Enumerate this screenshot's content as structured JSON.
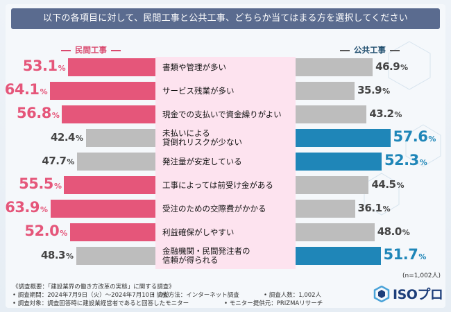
{
  "title": "以下の各項目に対して、民間工事と公共工事、どちらか当てはまる方を選択してください",
  "left_header": "民間工事",
  "right_header": "公共工事",
  "n_note": "(n=1,002人)",
  "footer": {
    "line1": "《調査概要：「建設業界の働き方改革の実態」に関する調査》",
    "line2a": "• 調査期間：2024年7月9日（火）～2024年7月10日（水）",
    "line2b": "• 調査方法：インターネット調査",
    "line2c": "• 調査人数：1,002人",
    "line3a": "• 調査対象：調査回答時に建設業経営者であると回答したモニター",
    "line3b": "• モニター提供元：PRIZMAリサーチ"
  },
  "logo": {
    "text": "ISOプロ"
  },
  "colors": {
    "private_win": "#e5567a",
    "public_win": "#1f86b8",
    "lose": "#bdbdbd",
    "center": "#fde3ef",
    "title_bg": "#5a6b8f"
  },
  "chart_data": {
    "type": "bar",
    "orientation": "diverging-horizontal",
    "unit": "%",
    "categories": [
      "書類や管理が多い",
      "サービス残業が多い",
      "現金での支払いで資金繰りがよい",
      "未払いによる\n貸倒れリスクが少ない",
      "発注量が安定している",
      "工事によっては前受け金がある",
      "受注のための交際費がかかる",
      "利益確保がしやすい",
      "金融機関・民間発注者の\n信頼が得られる"
    ],
    "series": [
      {
        "name": "民間工事",
        "values": [
          53.1,
          64.1,
          56.8,
          42.4,
          47.7,
          55.5,
          63.9,
          52.0,
          48.3
        ]
      },
      {
        "name": "公共工事",
        "values": [
          46.9,
          35.9,
          43.2,
          57.6,
          52.3,
          44.5,
          36.1,
          48.0,
          51.7
        ]
      }
    ],
    "value_labels": {
      "private": [
        "53.1",
        "64.1",
        "56.8",
        "42.4",
        "47.7",
        "55.5",
        "63.9",
        "52.0",
        "48.3"
      ],
      "public": [
        "46.9",
        "35.9",
        "43.2",
        "57.6",
        "52.3",
        "44.5",
        "36.1",
        "48.0",
        "51.7"
      ]
    }
  }
}
